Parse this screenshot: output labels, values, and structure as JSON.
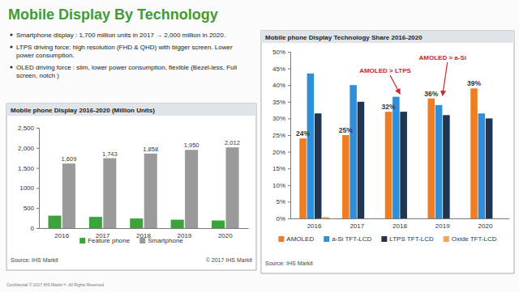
{
  "slide": {
    "title": "Mobile Display By Technology",
    "bullets": [
      "Smartphone display : 1,700 million units in 2017 → 2,000 million in 2020.",
      "LTPS driving force: high resolution (FHD & QHD) with bigger screen. Lower power consumption.",
      "OLED driving force : slim, lower power consumption, flexible (Bezel-less, Full screen, notch )"
    ],
    "footer": "Confidential © 2017 IHS Markit™. All Rights Reserved."
  },
  "chart_data": [
    {
      "type": "bar",
      "title": "Mobile phone Display 2016-2020 (Million Units)",
      "categories": [
        "2016",
        "2017",
        "2018",
        "2019",
        "2020"
      ],
      "series": [
        {
          "name": "Feature phone",
          "color": "#3aa43a",
          "values": [
            310,
            280,
            240,
            210,
            190
          ]
        },
        {
          "name": "Smartphone",
          "color": "#9a9a9a",
          "values": [
            1609,
            1743,
            1858,
            1950,
            2012
          ],
          "value_labels": [
            "1,609",
            "1,743",
            "1,858",
            "1,950",
            "2,012"
          ],
          "data_labels": true
        }
      ],
      "ylim": [
        0,
        2500
      ],
      "yticks": [
        0,
        500,
        1000,
        {
          "value": 1500,
          "label": "1,500"
        },
        {
          "value": 2000,
          "label": "2,000"
        },
        {
          "value": 2500,
          "label": "2,500"
        }
      ],
      "grid": false,
      "legend": "bottom",
      "source": "Source: IHS Markit",
      "note": "© 2017 IHS Markit"
    },
    {
      "type": "bar",
      "title": "Mobile phone Display Technology Share 2016-2020",
      "categories": [
        "2016",
        "2017",
        "2018",
        "2019",
        "2020"
      ],
      "series": [
        {
          "name": "AMOLED",
          "color": "#f07d21",
          "values": [
            24,
            25,
            32,
            36,
            39
          ],
          "value_labels": [
            "24%",
            "25%",
            "32%",
            "36%",
            "39%"
          ],
          "data_labels": true
        },
        {
          "name": "a-Si TFT-LCD",
          "color": "#2f8fdb",
          "values": [
            43.5,
            40,
            36.5,
            34,
            31.5
          ]
        },
        {
          "name": "LTPS TFT-LCD",
          "color": "#1f3550",
          "values": [
            31.5,
            35,
            32,
            31,
            30
          ]
        },
        {
          "name": "Oxide TFT-LCD",
          "color": "#f3a65a",
          "values": [
            0.4,
            0,
            0,
            0,
            0
          ]
        }
      ],
      "ylim": [
        0,
        50
      ],
      "yticks": [
        {
          "value": 0,
          "label": "0%"
        },
        {
          "value": 5,
          "label": "5%"
        },
        {
          "value": 10,
          "label": "10%"
        },
        {
          "value": 15,
          "label": "15%"
        },
        {
          "value": 20,
          "label": "20%"
        },
        {
          "value": 25,
          "label": "25%"
        },
        {
          "value": 30,
          "label": "30%"
        },
        {
          "value": 35,
          "label": "35%"
        },
        {
          "value": 40,
          "label": "40%"
        },
        {
          "value": 45,
          "label": "45%"
        },
        {
          "value": 50,
          "label": "50%"
        }
      ],
      "grid": false,
      "legend": "bottom",
      "annotations": [
        "AMOLED > LTPS",
        "AMOLED > a-Si"
      ],
      "source": "Source: IHS Markit"
    }
  ]
}
